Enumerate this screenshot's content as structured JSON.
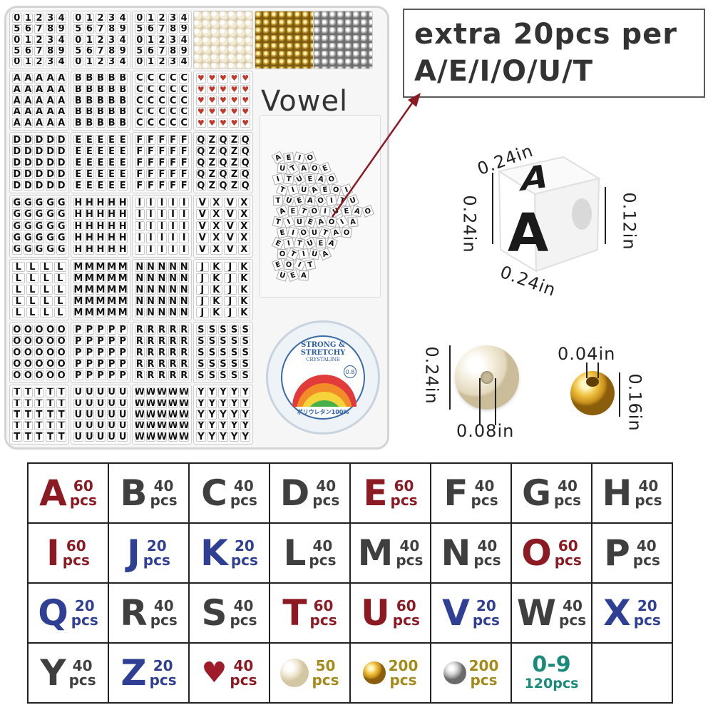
{
  "callout": {
    "line1": "extra 20pcs per",
    "line2": "A/E/I/O/U/T"
  },
  "box": {
    "vowel_label": "Vowel",
    "digit_rows": [
      "01234",
      "56789",
      "01234",
      "56789",
      "01234"
    ],
    "compartments": [
      {
        "type": "letters",
        "char": "A"
      },
      {
        "type": "letters",
        "char": "B"
      },
      {
        "type": "letters",
        "char": "C"
      },
      {
        "type": "hearts",
        "char": "♥"
      },
      {
        "type": "letters",
        "char": "D"
      },
      {
        "type": "letters",
        "char": "E"
      },
      {
        "type": "letters",
        "char": "F"
      },
      {
        "type": "mixed",
        "rows": [
          "QZQZQ",
          "QZQZQ",
          "QZQZQ",
          "QZQZQ",
          "QZQZQ"
        ]
      },
      {
        "type": "letters",
        "char": "G"
      },
      {
        "type": "letters",
        "char": "H"
      },
      {
        "type": "letters",
        "char": "I"
      },
      {
        "type": "mixed",
        "rows": [
          "VXVX",
          "VXVX",
          "VXVX",
          "VXVX",
          "VXVX"
        ]
      },
      {
        "type": "letters4",
        "char": "L"
      },
      {
        "type": "letters",
        "char": "M"
      },
      {
        "type": "letters",
        "char": "N"
      },
      {
        "type": "mixed",
        "rows": [
          "JKJK",
          "JKJK",
          "JKJK",
          "JKJK",
          "JKJK"
        ]
      },
      {
        "type": "letters",
        "char": "O"
      },
      {
        "type": "letters",
        "char": "P"
      },
      {
        "type": "letters",
        "char": "R"
      },
      {
        "type": "letters",
        "char": "S"
      },
      {
        "type": "letters",
        "char": "T"
      },
      {
        "type": "letters",
        "char": "U"
      },
      {
        "type": "letters",
        "char": "W"
      },
      {
        "type": "letters",
        "char": "Y"
      }
    ],
    "loose_letters": [
      "A",
      "E",
      "I",
      "O",
      "U",
      "T",
      "A",
      "O",
      "E",
      "I",
      "T",
      "U",
      "E",
      "A",
      "O",
      "T",
      "I",
      "U",
      "A",
      "E",
      "O",
      "I",
      "T",
      "U",
      "E",
      "A",
      "O",
      "I",
      "T",
      "U",
      "A",
      "E",
      "T",
      "O",
      "I",
      "U",
      "E",
      "A",
      "O",
      "T",
      "I",
      "U",
      "E",
      "A",
      "O",
      "I"
    ]
  },
  "spool": {
    "brand": "STRONG & STRETCHY",
    "subtitle": "CRYSTALINE",
    "size": "0.8",
    "japanese": "ポリウレタン100%"
  },
  "dimensions": {
    "cube_letter": "A",
    "cube_top": "0.24in",
    "cube_left": "0.24in",
    "cube_bottom": "0.24in",
    "cube_hole": "0.12in",
    "pearl_height": "0.24in",
    "pearl_hole": "0.08in",
    "gold_hole": "0.04in",
    "gold_height": "0.16in"
  },
  "quantities": [
    [
      {
        "kind": "letter",
        "glyph": "A",
        "num": "60",
        "unit": "pcs",
        "color": "red"
      },
      {
        "kind": "letter",
        "glyph": "B",
        "num": "40",
        "unit": "pcs",
        "color": "gray"
      },
      {
        "kind": "letter",
        "glyph": "C",
        "num": "40",
        "unit": "pcs",
        "color": "gray"
      },
      {
        "kind": "letter",
        "glyph": "D",
        "num": "40",
        "unit": "pcs",
        "color": "gray"
      },
      {
        "kind": "letter",
        "glyph": "E",
        "num": "60",
        "unit": "pcs",
        "color": "red"
      },
      {
        "kind": "letter",
        "glyph": "F",
        "num": "40",
        "unit": "pcs",
        "color": "gray"
      },
      {
        "kind": "letter",
        "glyph": "G",
        "num": "40",
        "unit": "pcs",
        "color": "gray"
      },
      {
        "kind": "letter",
        "glyph": "H",
        "num": "40",
        "unit": "pcs",
        "color": "gray"
      }
    ],
    [
      {
        "kind": "letter",
        "glyph": "I",
        "num": "60",
        "unit": "pcs",
        "color": "red"
      },
      {
        "kind": "letter",
        "glyph": "J",
        "num": "20",
        "unit": "pcs",
        "color": "blue"
      },
      {
        "kind": "letter",
        "glyph": "K",
        "num": "20",
        "unit": "pcs",
        "color": "blue"
      },
      {
        "kind": "letter",
        "glyph": "L",
        "num": "40",
        "unit": "pcs",
        "color": "gray"
      },
      {
        "kind": "letter",
        "glyph": "M",
        "num": "40",
        "unit": "pcs",
        "color": "gray"
      },
      {
        "kind": "letter",
        "glyph": "N",
        "num": "40",
        "unit": "pcs",
        "color": "gray"
      },
      {
        "kind": "letter",
        "glyph": "O",
        "num": "60",
        "unit": "pcs",
        "color": "red"
      },
      {
        "kind": "letter",
        "glyph": "P",
        "num": "40",
        "unit": "pcs",
        "color": "gray"
      }
    ],
    [
      {
        "kind": "letter",
        "glyph": "Q",
        "num": "20",
        "unit": "pcs",
        "color": "blue"
      },
      {
        "kind": "letter",
        "glyph": "R",
        "num": "40",
        "unit": "pcs",
        "color": "gray"
      },
      {
        "kind": "letter",
        "glyph": "S",
        "num": "40",
        "unit": "pcs",
        "color": "gray"
      },
      {
        "kind": "letter",
        "glyph": "T",
        "num": "60",
        "unit": "pcs",
        "color": "red"
      },
      {
        "kind": "letter",
        "glyph": "U",
        "num": "60",
        "unit": "pcs",
        "color": "red"
      },
      {
        "kind": "letter",
        "glyph": "V",
        "num": "20",
        "unit": "pcs",
        "color": "blue"
      },
      {
        "kind": "letter",
        "glyph": "W",
        "num": "40",
        "unit": "pcs",
        "color": "gray"
      },
      {
        "kind": "letter",
        "glyph": "X",
        "num": "20",
        "unit": "pcs",
        "color": "blue"
      }
    ],
    [
      {
        "kind": "letter",
        "glyph": "Y",
        "num": "40",
        "unit": "pcs",
        "color": "gray"
      },
      {
        "kind": "letter",
        "glyph": "Z",
        "num": "20",
        "unit": "pcs",
        "color": "blue"
      },
      {
        "kind": "heart",
        "icon": "heart-icon",
        "num": "40",
        "unit": "pcs",
        "color": "red"
      },
      {
        "kind": "pearl",
        "icon": "pearl-bead-icon",
        "num": "50",
        "unit": "pcs",
        "color": "gold"
      },
      {
        "kind": "gold",
        "icon": "gold-bead-icon",
        "num": "200",
        "unit": "pcs",
        "color": "gold"
      },
      {
        "kind": "silver",
        "icon": "silver-bead-icon",
        "num": "200",
        "unit": "pcs",
        "color": "gold"
      },
      {
        "kind": "digits",
        "glyph": "0-9",
        "count": "120pcs",
        "color": "green"
      },
      {
        "kind": "empty"
      }
    ]
  ],
  "colors": {
    "red": "#8b1a22",
    "gray": "#3f3f3f",
    "blue": "#2f3f94",
    "gold": "#a48a1a",
    "green": "#1a8a7a"
  }
}
